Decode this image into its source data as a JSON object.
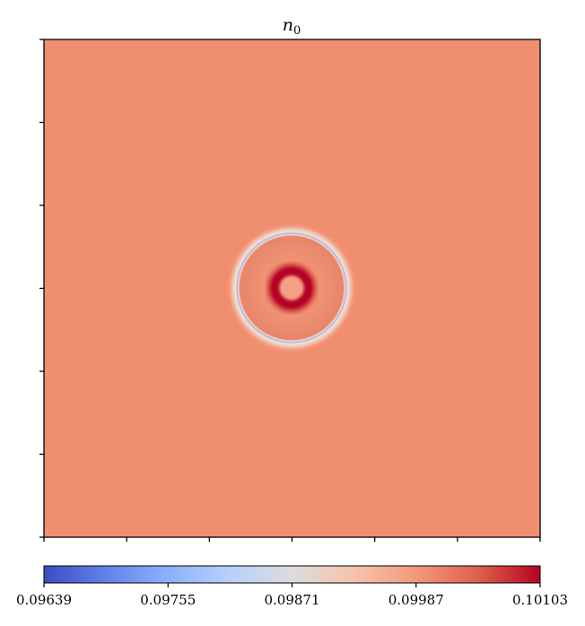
{
  "chart_data": {
    "type": "heatmap",
    "title": {
      "symbol": "n",
      "subscript": "0"
    },
    "xlabel": "",
    "ylabel": "",
    "background_value": 0.0999,
    "features": [
      {
        "kind": "ring",
        "description": "low-value outer front",
        "value": 0.0976
      },
      {
        "kind": "ring",
        "description": "high-value inner ring",
        "value": 0.10103
      },
      {
        "kind": "disk",
        "description": "center core",
        "value": 0.0999
      }
    ],
    "x_ticks": 7,
    "y_ticks": 7,
    "colorbar": {
      "colormap": "coolwarm",
      "min": 0.09639,
      "max": 0.10103,
      "tick_values": [
        0.09639,
        0.09755,
        0.09871,
        0.09987,
        0.10103
      ],
      "tick_labels": [
        "0.09639",
        "0.09755",
        "0.09871",
        "0.09987",
        "0.10103"
      ]
    },
    "colors": {
      "background": "#f08e70",
      "low": "#3b4cc0",
      "mid": "#dddddd",
      "high": "#b40426"
    }
  }
}
